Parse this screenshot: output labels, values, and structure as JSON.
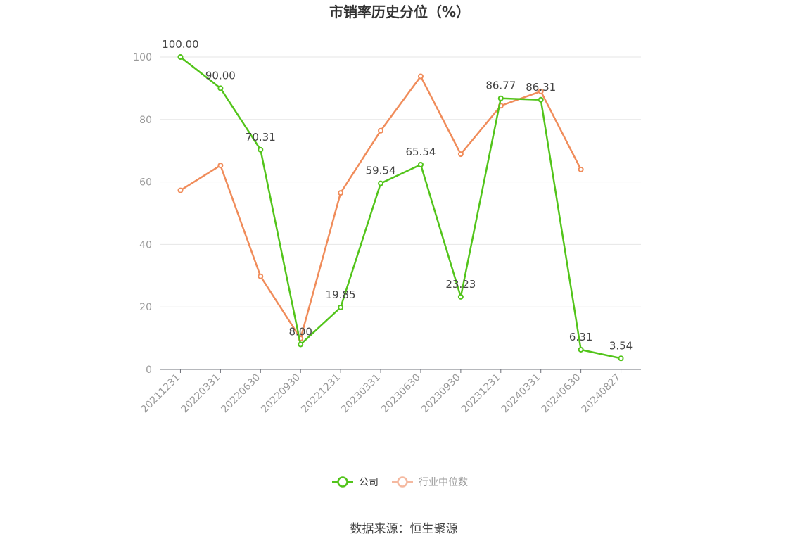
{
  "chart_data": {
    "type": "line",
    "title": "市销率历史分位（%）",
    "categories": [
      "20211231",
      "20220331",
      "20220630",
      "20220930",
      "20221231",
      "20230331",
      "20230630",
      "20230930",
      "20231231",
      "20240331",
      "20240630",
      "20240827"
    ],
    "ylim": [
      0,
      100
    ],
    "yticks": [
      0,
      20,
      40,
      60,
      80,
      100
    ],
    "grid": true,
    "legend_position": "bottom",
    "series": [
      {
        "name": "公司",
        "color": "#52c41a",
        "values": [
          100.0,
          90.0,
          70.31,
          8.0,
          19.85,
          59.54,
          65.54,
          23.23,
          86.77,
          86.31,
          6.31,
          3.54
        ],
        "labels": [
          "100.00",
          "90.00",
          "70.31",
          "8.00",
          "19.85",
          "59.54",
          "65.54",
          "23.23",
          "86.77",
          "86.31",
          "6.31",
          "3.54"
        ]
      },
      {
        "name": "行业中位数",
        "color": "#f08c5a",
        "legend_color": "#f5b9a0",
        "values": [
          57.3,
          65.3,
          29.8,
          9.9,
          56.5,
          76.4,
          93.8,
          68.9,
          84.4,
          89.0,
          64.0,
          null
        ]
      }
    ]
  },
  "source": "数据来源：恒生聚源"
}
